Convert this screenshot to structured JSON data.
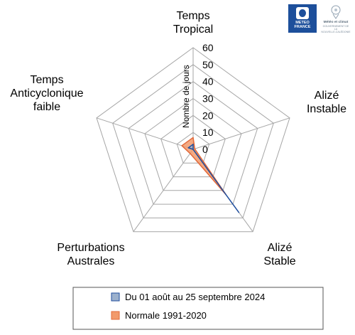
{
  "chart_data": {
    "type": "radar",
    "axes": [
      "Temps Tropical",
      "Alizé Instable",
      "Alizé Stable",
      "Perturbations Australes",
      "Temps Anticyclonique faible"
    ],
    "axis_label_lines": [
      [
        "Temps",
        "Tropical"
      ],
      [
        "Alizé",
        "Instable"
      ],
      [
        "Alizé",
        "Stable"
      ],
      [
        "Perturbations",
        "Australes"
      ],
      [
        "Temps",
        "Anticyclonique",
        "faible"
      ]
    ],
    "rlim": [
      0,
      60
    ],
    "ticks": [
      0,
      10,
      20,
      30,
      40,
      50,
      60
    ],
    "tick_labels": [
      "0",
      "10",
      "20",
      "30",
      "40",
      "50",
      "60"
    ],
    "rlabel": "Nombre de jours",
    "series": [
      {
        "name": "Du 01 août au 25 septembre 2024",
        "values": [
          3,
          0,
          46,
          0,
          3
        ],
        "color": "#1f4e9e",
        "fill": "#9bb0cc"
      },
      {
        "name": "Normale 1991-2020",
        "values": [
          7,
          1,
          33,
          3,
          7
        ],
        "color": "#e2693a",
        "fill": "#f29a6c"
      }
    ],
    "legend_position": "bottom"
  },
  "logo": {
    "brand_line1": "METEO",
    "brand_line2": "FRANCE",
    "partner_title": "Météo et climat",
    "partner_sub1": "GOUVERNEMENT DE LA",
    "partner_sub2": "NOUVELLE-CALÉDONIE"
  }
}
